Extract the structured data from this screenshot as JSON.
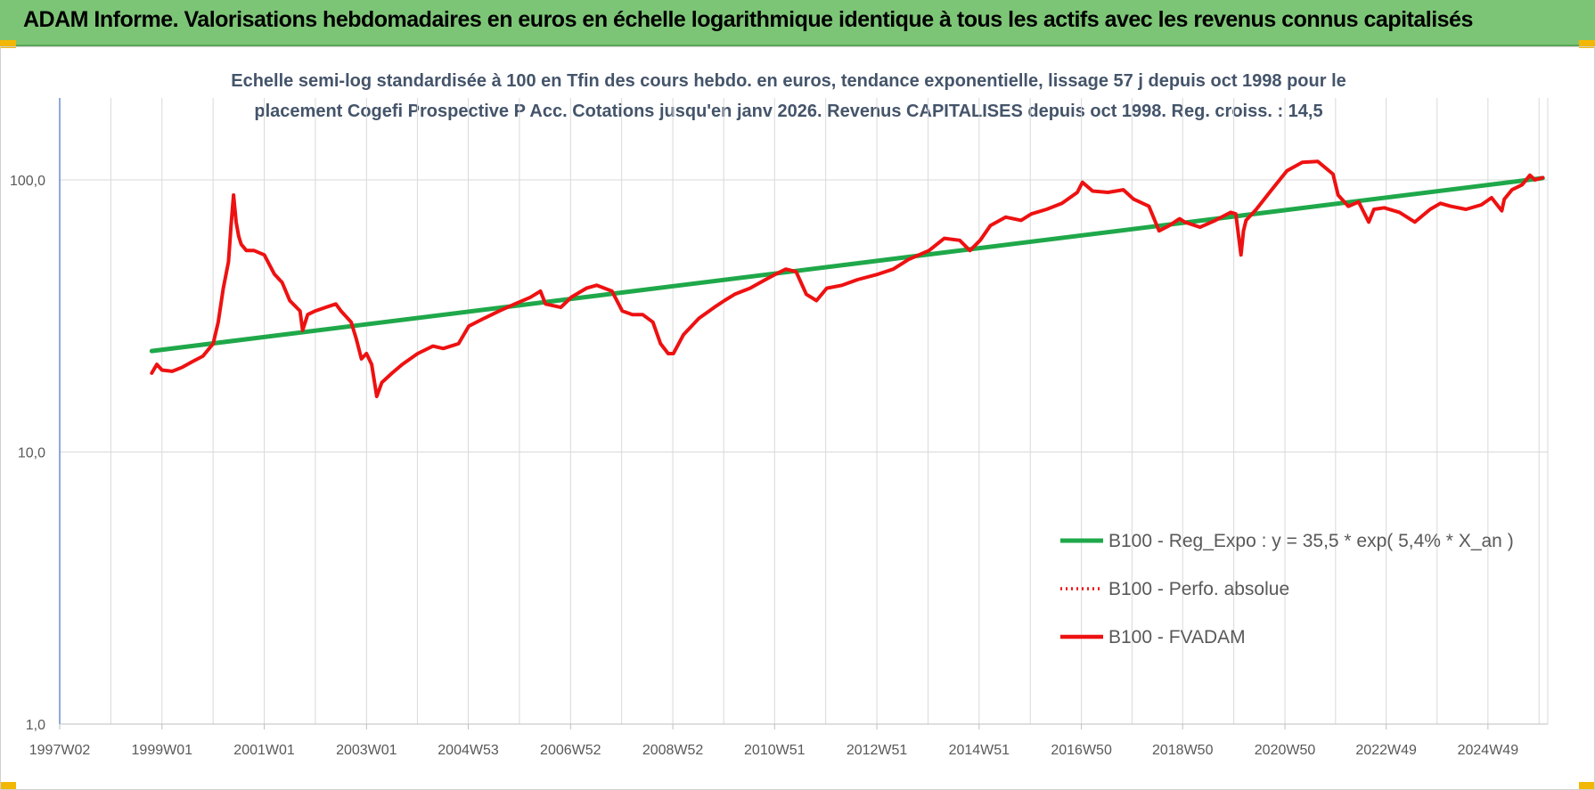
{
  "page": {
    "banner_title": "ADAM Informe. Valorisations hebdomadaires en euros en échelle logarithmique identique à tous les actifs avec les revenus connus capitalisés"
  },
  "colors": {
    "banner_bg": "#7cc576",
    "corner_accent": "#f2b705",
    "title_text": "#44546a",
    "regression": "#1fa84a",
    "fvadam": "#ee1111",
    "perfo": "#ee1111"
  },
  "chart_data": {
    "type": "line",
    "title_line1": "Echelle semi-log standardisée à 100 en Tfin des cours hebdo. en euros, tendance exponentielle, lissage 57 j depuis oct 1998 pour le",
    "title_line2": "placement Cogefi Prospective P Acc. Cotations jusqu'en janv 2026. Revenus CAPITALISES depuis oct 1998. Reg. croiss. : 14,5",
    "y_scale": "log",
    "ylim": [
      1,
      150
    ],
    "y_ticks": [
      1,
      10,
      100
    ],
    "y_tick_labels": [
      "1,0",
      "10,0",
      "100,0"
    ],
    "xlim": [
      1997.0,
      2026.1
    ],
    "x_ticks": [
      1997.0,
      1999.0,
      2001.0,
      2003.0,
      2004.99,
      2006.99,
      2008.99,
      2010.98,
      2012.98,
      2014.98,
      2016.98,
      2018.96,
      2020.96,
      2022.94,
      2024.93
    ],
    "x_tick_labels": [
      "1997W02",
      "1999W01",
      "2001W01",
      "2003W01",
      "2004W53",
      "2006W52",
      "2008W52",
      "2010W51",
      "2012W51",
      "2014W51",
      "2016W50",
      "2018W50",
      "2020W50",
      "2022W49",
      "2024W49"
    ],
    "grid": "vertical",
    "legend_position": "bottom-right",
    "series": [
      {
        "name": "B100 - Reg_Expo : y = 35,5 * exp( 5,4% *  X_an )",
        "style": "solid-thick",
        "x": [
          1998.8,
          2026.0
        ],
        "y": [
          23.5,
          101.5
        ]
      },
      {
        "name": "B100 - Perfo. absolue",
        "style": "dotted",
        "x": [],
        "y": []
      },
      {
        "name": "B100 - FVADAM",
        "style": "solid",
        "x": [
          1998.8,
          1998.9,
          1999.0,
          1999.2,
          1999.4,
          1999.6,
          1999.8,
          2000.0,
          2000.1,
          2000.2,
          2000.3,
          2000.35,
          2000.4,
          2000.45,
          2000.5,
          2000.55,
          2000.65,
          2000.8,
          2001.0,
          2001.2,
          2001.35,
          2001.5,
          2001.7,
          2001.75,
          2001.85,
          2002.0,
          2002.2,
          2002.4,
          2002.5,
          2002.7,
          2002.8,
          2002.9,
          2003.0,
          2003.1,
          2003.2,
          2003.3,
          2003.5,
          2003.7,
          2004.0,
          2004.3,
          2004.5,
          2004.8,
          2005.0,
          2005.3,
          2005.6,
          2005.9,
          2006.2,
          2006.4,
          2006.5,
          2006.8,
          2007.0,
          2007.3,
          2007.5,
          2007.8,
          2008.0,
          2008.2,
          2008.4,
          2008.6,
          2008.75,
          2008.9,
          2009.0,
          2009.2,
          2009.5,
          2009.8,
          2010.0,
          2010.2,
          2010.5,
          2010.8,
          2011.0,
          2011.2,
          2011.4,
          2011.6,
          2011.8,
          2012.0,
          2012.3,
          2012.6,
          2013.0,
          2013.3,
          2013.6,
          2014.0,
          2014.3,
          2014.6,
          2014.8,
          2015.0,
          2015.2,
          2015.5,
          2015.8,
          2016.0,
          2016.3,
          2016.6,
          2016.9,
          2017.0,
          2017.2,
          2017.5,
          2017.8,
          2018.0,
          2018.3,
          2018.5,
          2018.7,
          2018.9,
          2019.0,
          2019.3,
          2019.6,
          2019.9,
          2020.0,
          2020.1,
          2020.15,
          2020.2,
          2020.4,
          2020.7,
          2021.0,
          2021.3,
          2021.6,
          2021.9,
          2022.0,
          2022.2,
          2022.4,
          2022.6,
          2022.7,
          2022.9,
          2023.2,
          2023.5,
          2023.8,
          2024.0,
          2024.2,
          2024.5,
          2024.8,
          2025.0,
          2025.2,
          2025.25,
          2025.4,
          2025.6,
          2025.75,
          2025.85,
          2026.0
        ],
        "y": [
          19.5,
          21.0,
          20.0,
          19.8,
          20.5,
          21.5,
          22.5,
          25.0,
          30.0,
          40.0,
          50.0,
          68.0,
          88.0,
          70.0,
          62.0,
          58.0,
          55.0,
          55.0,
          53.0,
          45.0,
          42.0,
          36.0,
          33.0,
          28.0,
          32.0,
          33.0,
          34.0,
          35.0,
          33.0,
          30.0,
          26.0,
          22.0,
          23.0,
          21.0,
          16.0,
          18.0,
          19.5,
          21.0,
          23.0,
          24.5,
          24.0,
          25.0,
          29.0,
          31.0,
          33.0,
          35.0,
          37.0,
          39.0,
          35.0,
          34.0,
          37.0,
          40.0,
          41.0,
          39.0,
          33.0,
          32.0,
          32.0,
          30.0,
          25.0,
          23.0,
          23.0,
          27.0,
          31.0,
          34.0,
          36.0,
          38.0,
          40.0,
          43.0,
          45.0,
          47.0,
          46.0,
          38.0,
          36.0,
          40.0,
          41.0,
          43.0,
          45.0,
          47.0,
          51.0,
          55.0,
          61.0,
          60.0,
          55.0,
          60.0,
          68.0,
          73.0,
          71.0,
          75.0,
          78.0,
          82.0,
          90.0,
          98.0,
          91.0,
          90.0,
          92.0,
          85.0,
          80.0,
          65.0,
          68.0,
          72.0,
          70.0,
          67.0,
          71.0,
          76.0,
          75.0,
          53.0,
          65.0,
          71.0,
          78.0,
          92.0,
          108.0,
          116.0,
          117.0,
          105.0,
          88.0,
          80.0,
          83.0,
          70.0,
          78.0,
          79.0,
          76.0,
          70.0,
          78.0,
          82.0,
          80.0,
          78.0,
          81.0,
          86.0,
          77.0,
          85.0,
          92.0,
          96.0,
          104.0,
          100.0,
          102.0
        ]
      }
    ]
  }
}
